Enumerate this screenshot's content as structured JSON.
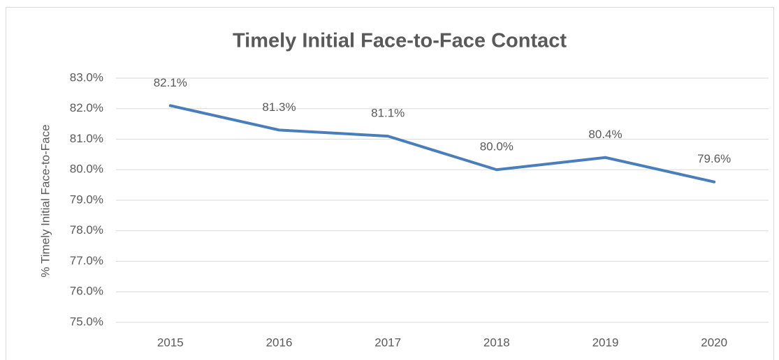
{
  "chart_data": {
    "type": "line",
    "title": "Timely Initial Face-to-Face Contact",
    "y_label": "% Timely Initial Face-to-Face",
    "categories": [
      "2015",
      "2016",
      "2017",
      "2018",
      "2019",
      "2020"
    ],
    "series": [
      {
        "name": "% Timely Initial Face-to-Face",
        "color": "#4a7ebb",
        "values": [
          82.1,
          81.3,
          81.1,
          80.0,
          80.4,
          79.6
        ],
        "value_labels": [
          "82.1%",
          "81.3%",
          "81.1%",
          "80.0%",
          "80.4%",
          "79.6%"
        ]
      }
    ],
    "ylim": [
      75,
      83
    ],
    "yticks": [
      {
        "value": 75,
        "label": "75.0%"
      },
      {
        "value": 76,
        "label": "76.0%"
      },
      {
        "value": 77,
        "label": "77.0%"
      },
      {
        "value": 78,
        "label": "78.0%"
      },
      {
        "value": 79,
        "label": "79.0%"
      },
      {
        "value": 80,
        "label": "80.0%"
      },
      {
        "value": 81,
        "label": "81.0%"
      },
      {
        "value": 82,
        "label": "82.0%"
      },
      {
        "value": 83,
        "label": "83.0%"
      }
    ],
    "grid": true
  }
}
